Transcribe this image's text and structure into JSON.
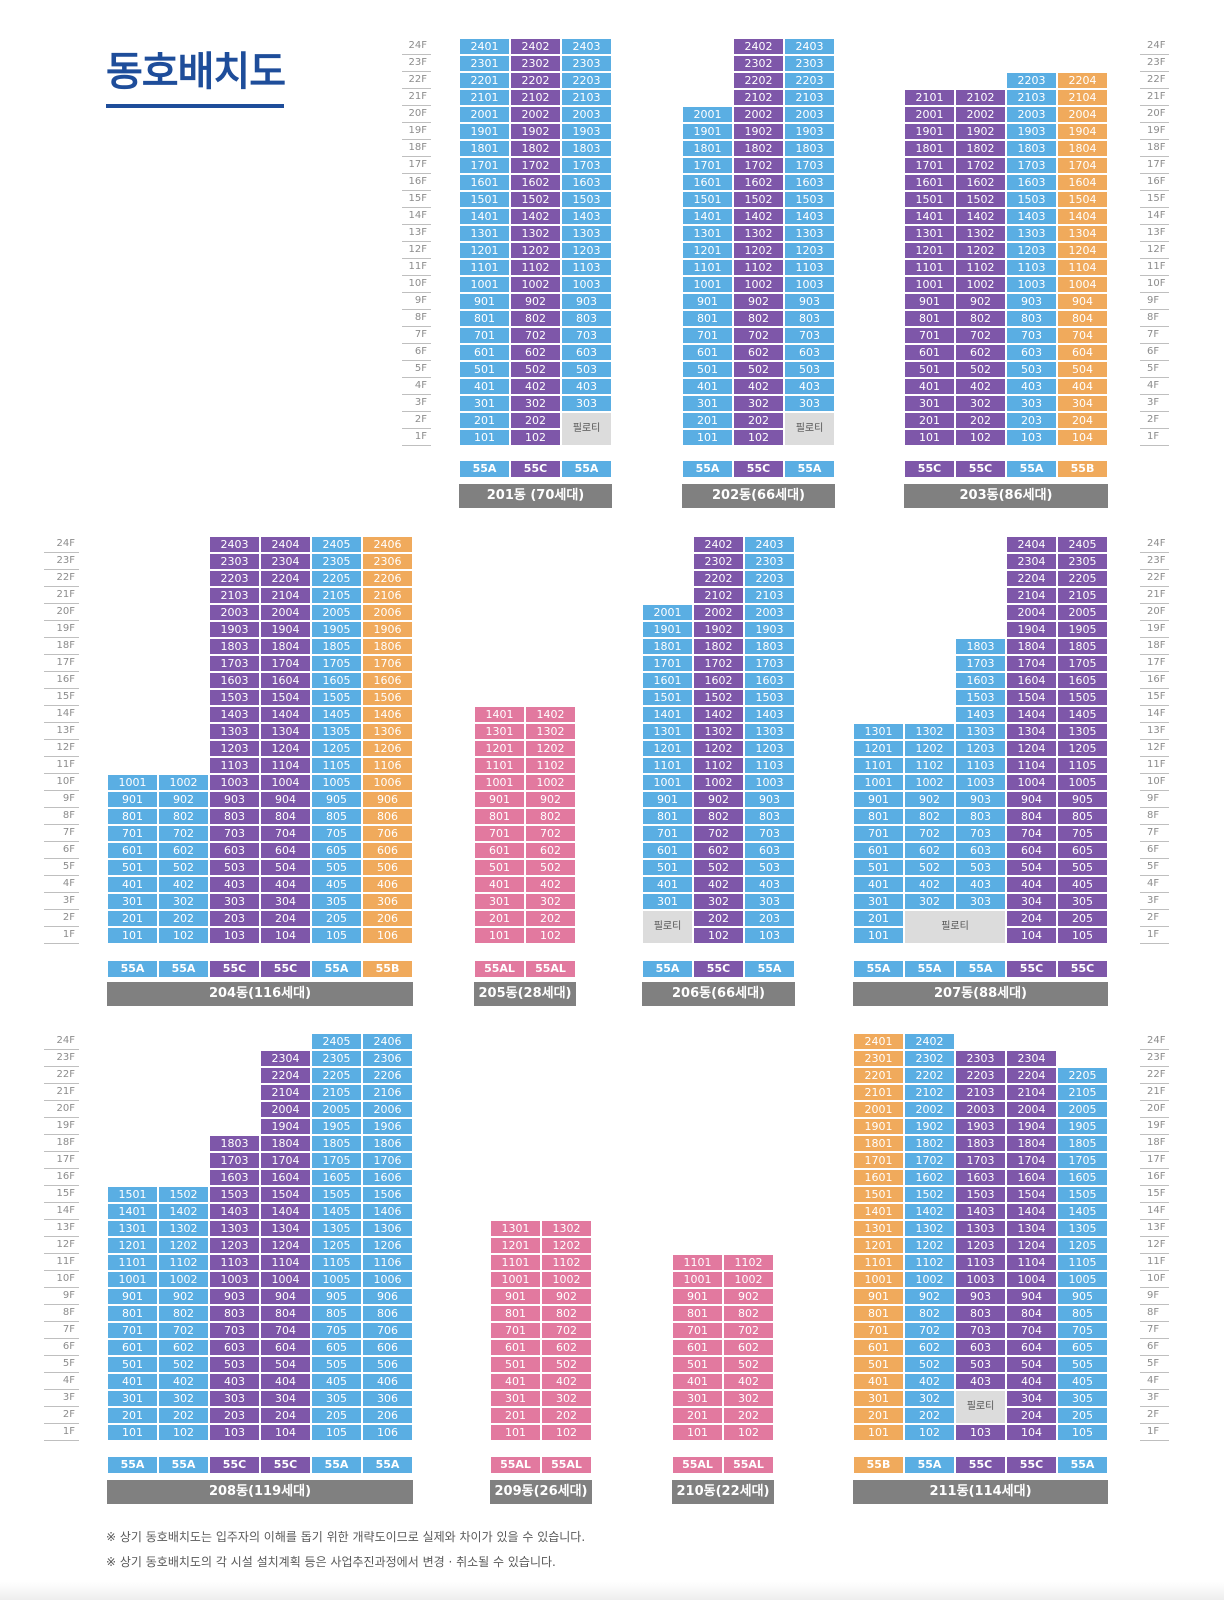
{
  "title": "동호배치도",
  "colors": {
    "blue": "#5aaee3",
    "purple": "#7e57a9",
    "orange": "#f0aa5c",
    "pink": "#e2799f",
    "piloti": "#dcdcdc",
    "label_bg": "#808080",
    "title": "#1e4d9a"
  },
  "piloti_label": "필로티",
  "floor_labels": [
    "1F",
    "2F",
    "3F",
    "4F",
    "5F",
    "6F",
    "7F",
    "8F",
    "9F",
    "10F",
    "11F",
    "12F",
    "13F",
    "14F",
    "15F",
    "16F",
    "17F",
    "18F",
    "19F",
    "20F",
    "21F",
    "22F",
    "23F",
    "24F"
  ],
  "notes": [
    "※ 상기 동호배치도는 입주자의 이해를 돕기 위한 개략도이므로 실제와 차이가 있을 수 있습니다.",
    "※ 상기 동호배치도의 각 시설 설치계획 등은 사업추진과정에서 변경 · 취소될 수 있습니다."
  ],
  "buildings": [
    {
      "name": "201동 (70세대)",
      "columns": [
        {
          "line": 1,
          "type": "55A",
          "color": "blue",
          "top": 24,
          "piloti": []
        },
        {
          "line": 2,
          "type": "55C",
          "color": "purple",
          "top": 24,
          "piloti": []
        },
        {
          "line": 3,
          "type": "55A",
          "color": "blue",
          "top": 24,
          "piloti": [
            1,
            2
          ]
        }
      ]
    },
    {
      "name": "202동(66세대)",
      "columns": [
        {
          "line": 1,
          "type": "55A",
          "color": "blue",
          "top": 20,
          "piloti": []
        },
        {
          "line": 2,
          "type": "55C",
          "color": "purple",
          "top": 24,
          "piloti": []
        },
        {
          "line": 3,
          "type": "55A",
          "color": "blue",
          "top": 24,
          "piloti": [
            1,
            2
          ]
        }
      ]
    },
    {
      "name": "203동(86세대)",
      "columns": [
        {
          "line": 1,
          "type": "55C",
          "color": "purple",
          "top": 21,
          "piloti": []
        },
        {
          "line": 2,
          "type": "55C",
          "color": "purple",
          "top": 21,
          "piloti": []
        },
        {
          "line": 3,
          "type": "55A",
          "color": "blue",
          "top": 22,
          "piloti": []
        },
        {
          "line": 4,
          "type": "55B",
          "color": "orange",
          "top": 22,
          "piloti": []
        }
      ]
    },
    {
      "name": "204동(116세대)",
      "columns": [
        {
          "line": 1,
          "type": "55A",
          "color": "blue",
          "top": 10,
          "piloti": []
        },
        {
          "line": 2,
          "type": "55A",
          "color": "blue",
          "top": 10,
          "piloti": []
        },
        {
          "line": 3,
          "type": "55C",
          "color": "purple",
          "top": 24,
          "piloti": []
        },
        {
          "line": 4,
          "type": "55C",
          "color": "purple",
          "top": 24,
          "piloti": []
        },
        {
          "line": 5,
          "type": "55A",
          "color": "blue",
          "top": 24,
          "piloti": []
        },
        {
          "line": 6,
          "type": "55B",
          "color": "orange",
          "top": 24,
          "piloti": []
        }
      ]
    },
    {
      "name": "205동(28세대)",
      "columns": [
        {
          "line": 1,
          "type": "55AL",
          "color": "pink",
          "top": 14,
          "piloti": []
        },
        {
          "line": 2,
          "type": "55AL",
          "color": "pink",
          "top": 14,
          "piloti": []
        }
      ]
    },
    {
      "name": "206동(66세대)",
      "columns": [
        {
          "line": 1,
          "type": "55A",
          "color": "blue",
          "top": 20,
          "piloti": [
            1,
            2
          ]
        },
        {
          "line": 2,
          "type": "55C",
          "color": "purple",
          "top": 24,
          "piloti": []
        },
        {
          "line": 3,
          "type": "55A",
          "color": "blue",
          "top": 24,
          "piloti": []
        }
      ]
    },
    {
      "name": "207동(88세대)",
      "columns": [
        {
          "line": 1,
          "type": "55A",
          "color": "blue",
          "top": 13,
          "piloti": []
        },
        {
          "line": 2,
          "type": "55A",
          "color": "blue",
          "top": 13,
          "piloti": [
            1,
            2
          ]
        },
        {
          "line": 3,
          "type": "55A",
          "color": "blue",
          "top": 18,
          "piloti": [
            1,
            2
          ]
        },
        {
          "line": 4,
          "type": "55C",
          "color": "purple",
          "top": 24,
          "piloti": []
        },
        {
          "line": 5,
          "type": "55C",
          "color": "purple",
          "top": 24,
          "piloti": []
        }
      ]
    },
    {
      "name": "208동(119세대)",
      "columns": [
        {
          "line": 1,
          "type": "55A",
          "color": "blue",
          "top": 15,
          "piloti": []
        },
        {
          "line": 2,
          "type": "55A",
          "color": "blue",
          "top": 15,
          "piloti": []
        },
        {
          "line": 3,
          "type": "55C",
          "color": "purple",
          "top": 18,
          "piloti": []
        },
        {
          "line": 4,
          "type": "55C",
          "color": "purple",
          "top": 23,
          "piloti": []
        },
        {
          "line": 5,
          "type": "55A",
          "color": "blue",
          "top": 24,
          "piloti": []
        },
        {
          "line": 6,
          "type": "55A",
          "color": "blue",
          "top": 24,
          "piloti": []
        }
      ]
    },
    {
      "name": "209동(26세대)",
      "columns": [
        {
          "line": 1,
          "type": "55AL",
          "color": "pink",
          "top": 13,
          "piloti": []
        },
        {
          "line": 2,
          "type": "55AL",
          "color": "pink",
          "top": 13,
          "piloti": []
        }
      ]
    },
    {
      "name": "210동(22세대)",
      "columns": [
        {
          "line": 1,
          "type": "55AL",
          "color": "pink",
          "top": 11,
          "piloti": []
        },
        {
          "line": 2,
          "type": "55AL",
          "color": "pink",
          "top": 11,
          "piloti": []
        }
      ]
    },
    {
      "name": "211동(114세대)",
      "columns": [
        {
          "line": 1,
          "type": "55B",
          "color": "orange",
          "top": 24,
          "piloti": []
        },
        {
          "line": 2,
          "type": "55A",
          "color": "blue",
          "top": 24,
          "piloti": []
        },
        {
          "line": 3,
          "type": "55C",
          "color": "purple",
          "top": 23,
          "piloti": [
            2,
            3
          ]
        },
        {
          "line": 4,
          "type": "55C",
          "color": "purple",
          "top": 23,
          "piloti": []
        },
        {
          "line": 5,
          "type": "55A",
          "color": "blue",
          "top": 22,
          "piloti": []
        }
      ]
    }
  ]
}
